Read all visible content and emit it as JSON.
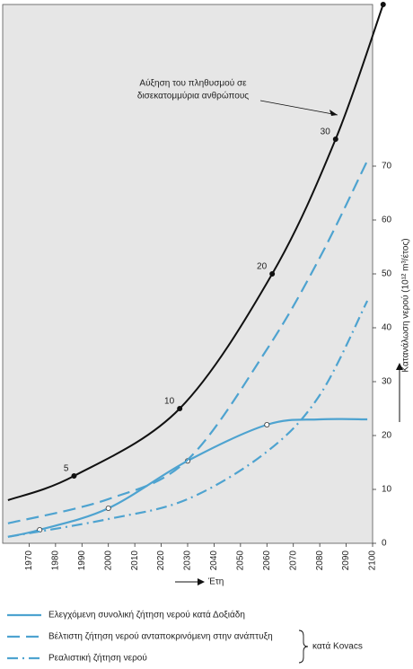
{
  "chart_data": {
    "type": "line",
    "annotation": [
      "Αύξηση του πληθυσμού σε",
      "δισεκατομμύρια ανθρώπους"
    ],
    "x_label": "Έτη",
    "y_label": "Κατανάλωση νερού (10¹² m³/έτος)",
    "xlim": [
      1960,
      2100
    ],
    "xticks": [
      1970,
      1980,
      1990,
      2000,
      2010,
      2020,
      2030,
      2040,
      2050,
      2060,
      2070,
      2080,
      2090,
      2100
    ],
    "ylim": [
      0,
      100
    ],
    "yticks": [
      0,
      10,
      20,
      30,
      40,
      50,
      60,
      70
    ],
    "y2lim": [
      0,
      40
    ],
    "legend_group": "κατά Kovacs",
    "series": [
      {
        "name": "Αύξηση του πληθυσμού σε δισεκατομμύρια ανθρώπους",
        "legend": false,
        "axis": "y2",
        "color": "#111111",
        "dash": "solid",
        "x": [
          1962,
          1987,
          2027,
          2062,
          2086,
          2104
        ],
        "values": [
          3.2,
          5,
          10,
          20,
          30,
          40
        ],
        "markers": [
          false,
          true,
          true,
          true,
          true,
          true
        ],
        "marker_fill": "#111111",
        "labels": true
      },
      {
        "name": "Ελεγχόμενη συνολική ζήτηση νερού κατά Δοξιάδη",
        "color": "#4ea3d0",
        "dash": "solid",
        "x": [
          1962,
          1974,
          2000,
          2030,
          2060,
          2080,
          2098
        ],
        "values": [
          1.2,
          2.5,
          6.5,
          15.3,
          22,
          23,
          23
        ],
        "markers": [
          false,
          true,
          true,
          true,
          true,
          false,
          false
        ],
        "marker_fill": "#ffffff"
      },
      {
        "name": "Βέλτιστη ζήτηση νερού ανταποκρινόμενη στην ανάπτυξη",
        "color": "#4ea3d0",
        "dash": "dashed",
        "x": [
          1962,
          2000,
          2030,
          2060,
          2080,
          2098
        ],
        "values": [
          3.7,
          8.2,
          15.5,
          36,
          53,
          71
        ]
      },
      {
        "name": "Ρεαλιστική ζήτηση νερού",
        "color": "#4ea3d0",
        "dash": "dashdot",
        "x": [
          1962,
          2000,
          2030,
          2060,
          2080,
          2098
        ],
        "values": [
          1.2,
          4.5,
          8.2,
          17,
          27.5,
          45
        ]
      }
    ]
  }
}
